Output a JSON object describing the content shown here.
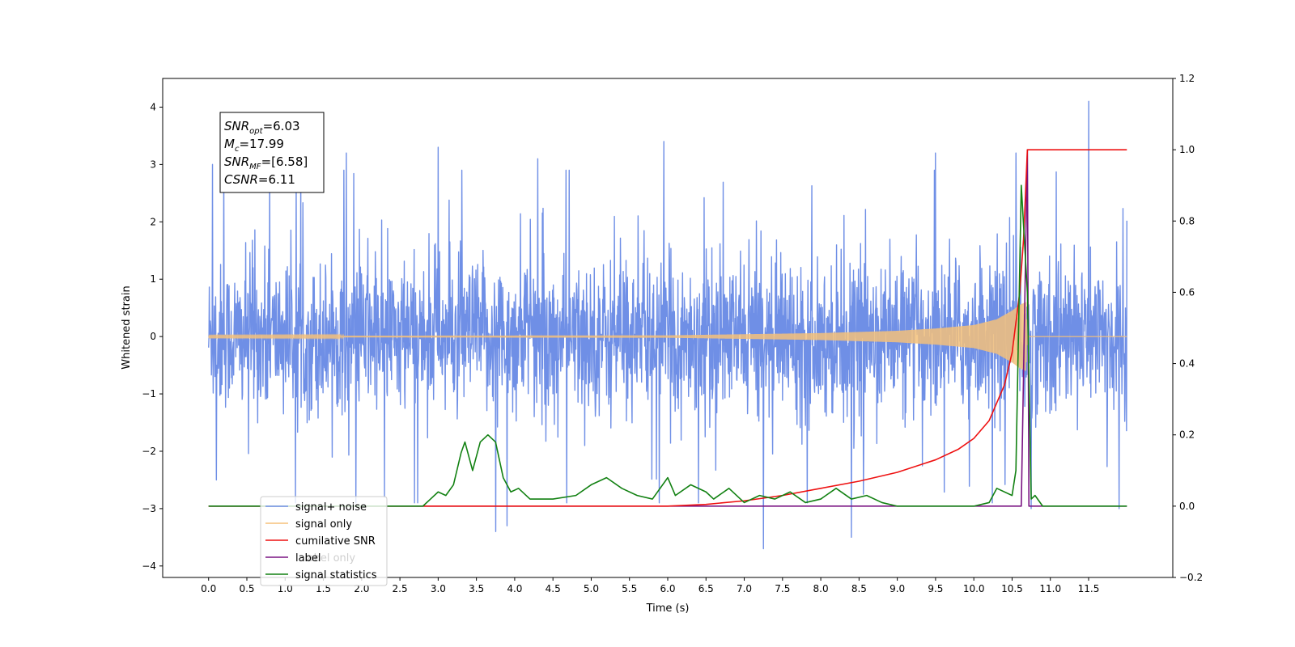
{
  "chart_data": {
    "type": "line",
    "xlabel": "Time (s)",
    "ylabel": "Whitened strain",
    "xlim": [
      -0.6,
      12.6
    ],
    "ylim_left": [
      -4.2,
      4.5
    ],
    "ylim_right": [
      -0.2,
      1.2
    ],
    "x_ticks": [
      0.0,
      0.5,
      1.0,
      1.5,
      2.0,
      2.5,
      3.0,
      3.5,
      4.0,
      4.5,
      5.0,
      5.5,
      6.0,
      6.5,
      7.0,
      7.5,
      8.0,
      8.5,
      9.0,
      9.5,
      10.0,
      10.5,
      11.0,
      11.5
    ],
    "x_tick_labels": [
      "0.0",
      "0.5",
      "1.0",
      "1.5",
      "2.0",
      "2.5",
      "3.0",
      "3.5",
      "4.0",
      "4.5",
      "5.0",
      "5.5",
      "6.0",
      "6.5",
      "7.0",
      "7.5",
      "8.0",
      "8.5",
      "9.0",
      "9.5",
      "10.0",
      "10.5",
      "11.0",
      "11.5"
    ],
    "y_left_ticks": [
      -4,
      -3,
      -2,
      -1,
      0,
      1,
      2,
      3,
      4
    ],
    "y_left_tick_labels": [
      "−4",
      "−3",
      "−2",
      "−1",
      "0",
      "1",
      "2",
      "3",
      "4"
    ],
    "y_right_ticks": [
      -0.2,
      0.0,
      0.2,
      0.4,
      0.6,
      0.8,
      1.0,
      1.2
    ],
    "y_right_tick_labels": [
      "−0.2",
      "0.0",
      "0.2",
      "0.4",
      "0.6",
      "0.8",
      "1.0",
      "1.2"
    ],
    "annotation": {
      "lines": [
        {
          "base": "SNR",
          "sub": "opt",
          "rest": "=6.03"
        },
        {
          "base": "M",
          "sub": "c",
          "rest": "=17.99"
        },
        {
          "base": "SNR",
          "sub": "MF",
          "rest": "=[6.58]"
        },
        {
          "base": "CSNR",
          "sub": "",
          "rest": "=6.11"
        }
      ]
    },
    "legend": {
      "placement": "lower-left",
      "entries": [
        {
          "label": "signal+ noise",
          "color": "#6f8fe6"
        },
        {
          "label": "signal only",
          "color": "#f5c17a"
        },
        {
          "label": "cumilative SNR",
          "color": "#ee1111"
        },
        {
          "label": "label",
          "color": "#7a1482"
        },
        {
          "label": "signal statistics",
          "color": "#128112"
        }
      ],
      "hidden_text": "label only"
    },
    "series": [
      {
        "name": "signal+ noise",
        "axis": "left",
        "color": "#6f8fe6",
        "kind": "noise",
        "x_range": [
          0.0,
          12.0
        ],
        "typical_range": [
          -1.6,
          1.5
        ],
        "spikes": [
          [
            0.05,
            3.0
          ],
          [
            0.1,
            -2.5
          ],
          [
            0.2,
            2.9
          ],
          [
            0.8,
            3.0
          ],
          [
            1.8,
            3.2
          ],
          [
            2.3,
            -2.8
          ],
          [
            3.0,
            3.3
          ],
          [
            3.75,
            -3.4
          ],
          [
            3.9,
            -3.3
          ],
          [
            4.3,
            3.1
          ],
          [
            5.95,
            3.4
          ],
          [
            6.4,
            -2.9
          ],
          [
            7.25,
            -3.7
          ],
          [
            8.4,
            -3.5
          ],
          [
            9.5,
            3.2
          ],
          [
            10.55,
            3.2
          ],
          [
            10.75,
            -3.0
          ],
          [
            11.5,
            4.1
          ],
          [
            11.9,
            -3.0
          ]
        ]
      },
      {
        "name": "signal only",
        "axis": "left",
        "color": "#f5c17a",
        "kind": "chirp",
        "x_range": [
          0.0,
          12.0
        ],
        "merger_time": 10.7,
        "amplitude_points": [
          [
            0.0,
            0.01
          ],
          [
            6.0,
            0.02
          ],
          [
            8.0,
            0.06
          ],
          [
            9.0,
            0.1
          ],
          [
            9.5,
            0.14
          ],
          [
            10.0,
            0.2
          ],
          [
            10.3,
            0.3
          ],
          [
            10.5,
            0.45
          ],
          [
            10.6,
            0.55
          ],
          [
            10.68,
            0.6
          ],
          [
            10.7,
            0.0
          ]
        ]
      },
      {
        "name": "cumilative SNR",
        "axis": "right",
        "color": "#ee1111",
        "x": [
          0.0,
          6.0,
          6.5,
          7.0,
          7.5,
          8.0,
          8.5,
          9.0,
          9.5,
          9.8,
          10.0,
          10.2,
          10.4,
          10.5,
          10.6,
          10.65,
          10.68,
          10.7,
          12.0
        ],
        "y": [
          0.0,
          0.0,
          0.005,
          0.015,
          0.03,
          0.05,
          0.07,
          0.095,
          0.13,
          0.16,
          0.19,
          0.24,
          0.34,
          0.43,
          0.6,
          0.75,
          0.9,
          1.0,
          1.0
        ]
      },
      {
        "name": "label",
        "axis": "right",
        "color": "#7a1482",
        "x": [
          0.0,
          10.62,
          10.7,
          10.72,
          12.0
        ],
        "y": [
          0.0,
          0.0,
          1.0,
          0.0,
          0.0
        ]
      },
      {
        "name": "signal statistics",
        "axis": "right",
        "color": "#128112",
        "x": [
          0.0,
          2.8,
          2.9,
          3.0,
          3.1,
          3.2,
          3.3,
          3.35,
          3.45,
          3.55,
          3.65,
          3.75,
          3.85,
          3.95,
          4.05,
          4.2,
          4.5,
          4.8,
          5.0,
          5.2,
          5.4,
          5.6,
          5.8,
          6.0,
          6.1,
          6.3,
          6.5,
          6.6,
          6.8,
          7.0,
          7.2,
          7.4,
          7.6,
          7.8,
          8.0,
          8.2,
          8.4,
          8.6,
          8.8,
          9.0,
          9.5,
          10.0,
          10.2,
          10.3,
          10.5,
          10.55,
          10.62,
          10.7,
          10.75,
          10.8,
          10.9,
          12.0
        ],
        "y": [
          0.0,
          0.0,
          0.02,
          0.04,
          0.03,
          0.06,
          0.15,
          0.18,
          0.1,
          0.18,
          0.2,
          0.18,
          0.08,
          0.04,
          0.05,
          0.02,
          0.02,
          0.03,
          0.06,
          0.08,
          0.05,
          0.03,
          0.02,
          0.08,
          0.03,
          0.06,
          0.04,
          0.02,
          0.05,
          0.01,
          0.03,
          0.02,
          0.04,
          0.01,
          0.02,
          0.05,
          0.02,
          0.03,
          0.01,
          0.0,
          0.0,
          0.0,
          0.01,
          0.05,
          0.03,
          0.1,
          0.9,
          0.6,
          0.02,
          0.03,
          0.0,
          0.0
        ]
      }
    ]
  }
}
